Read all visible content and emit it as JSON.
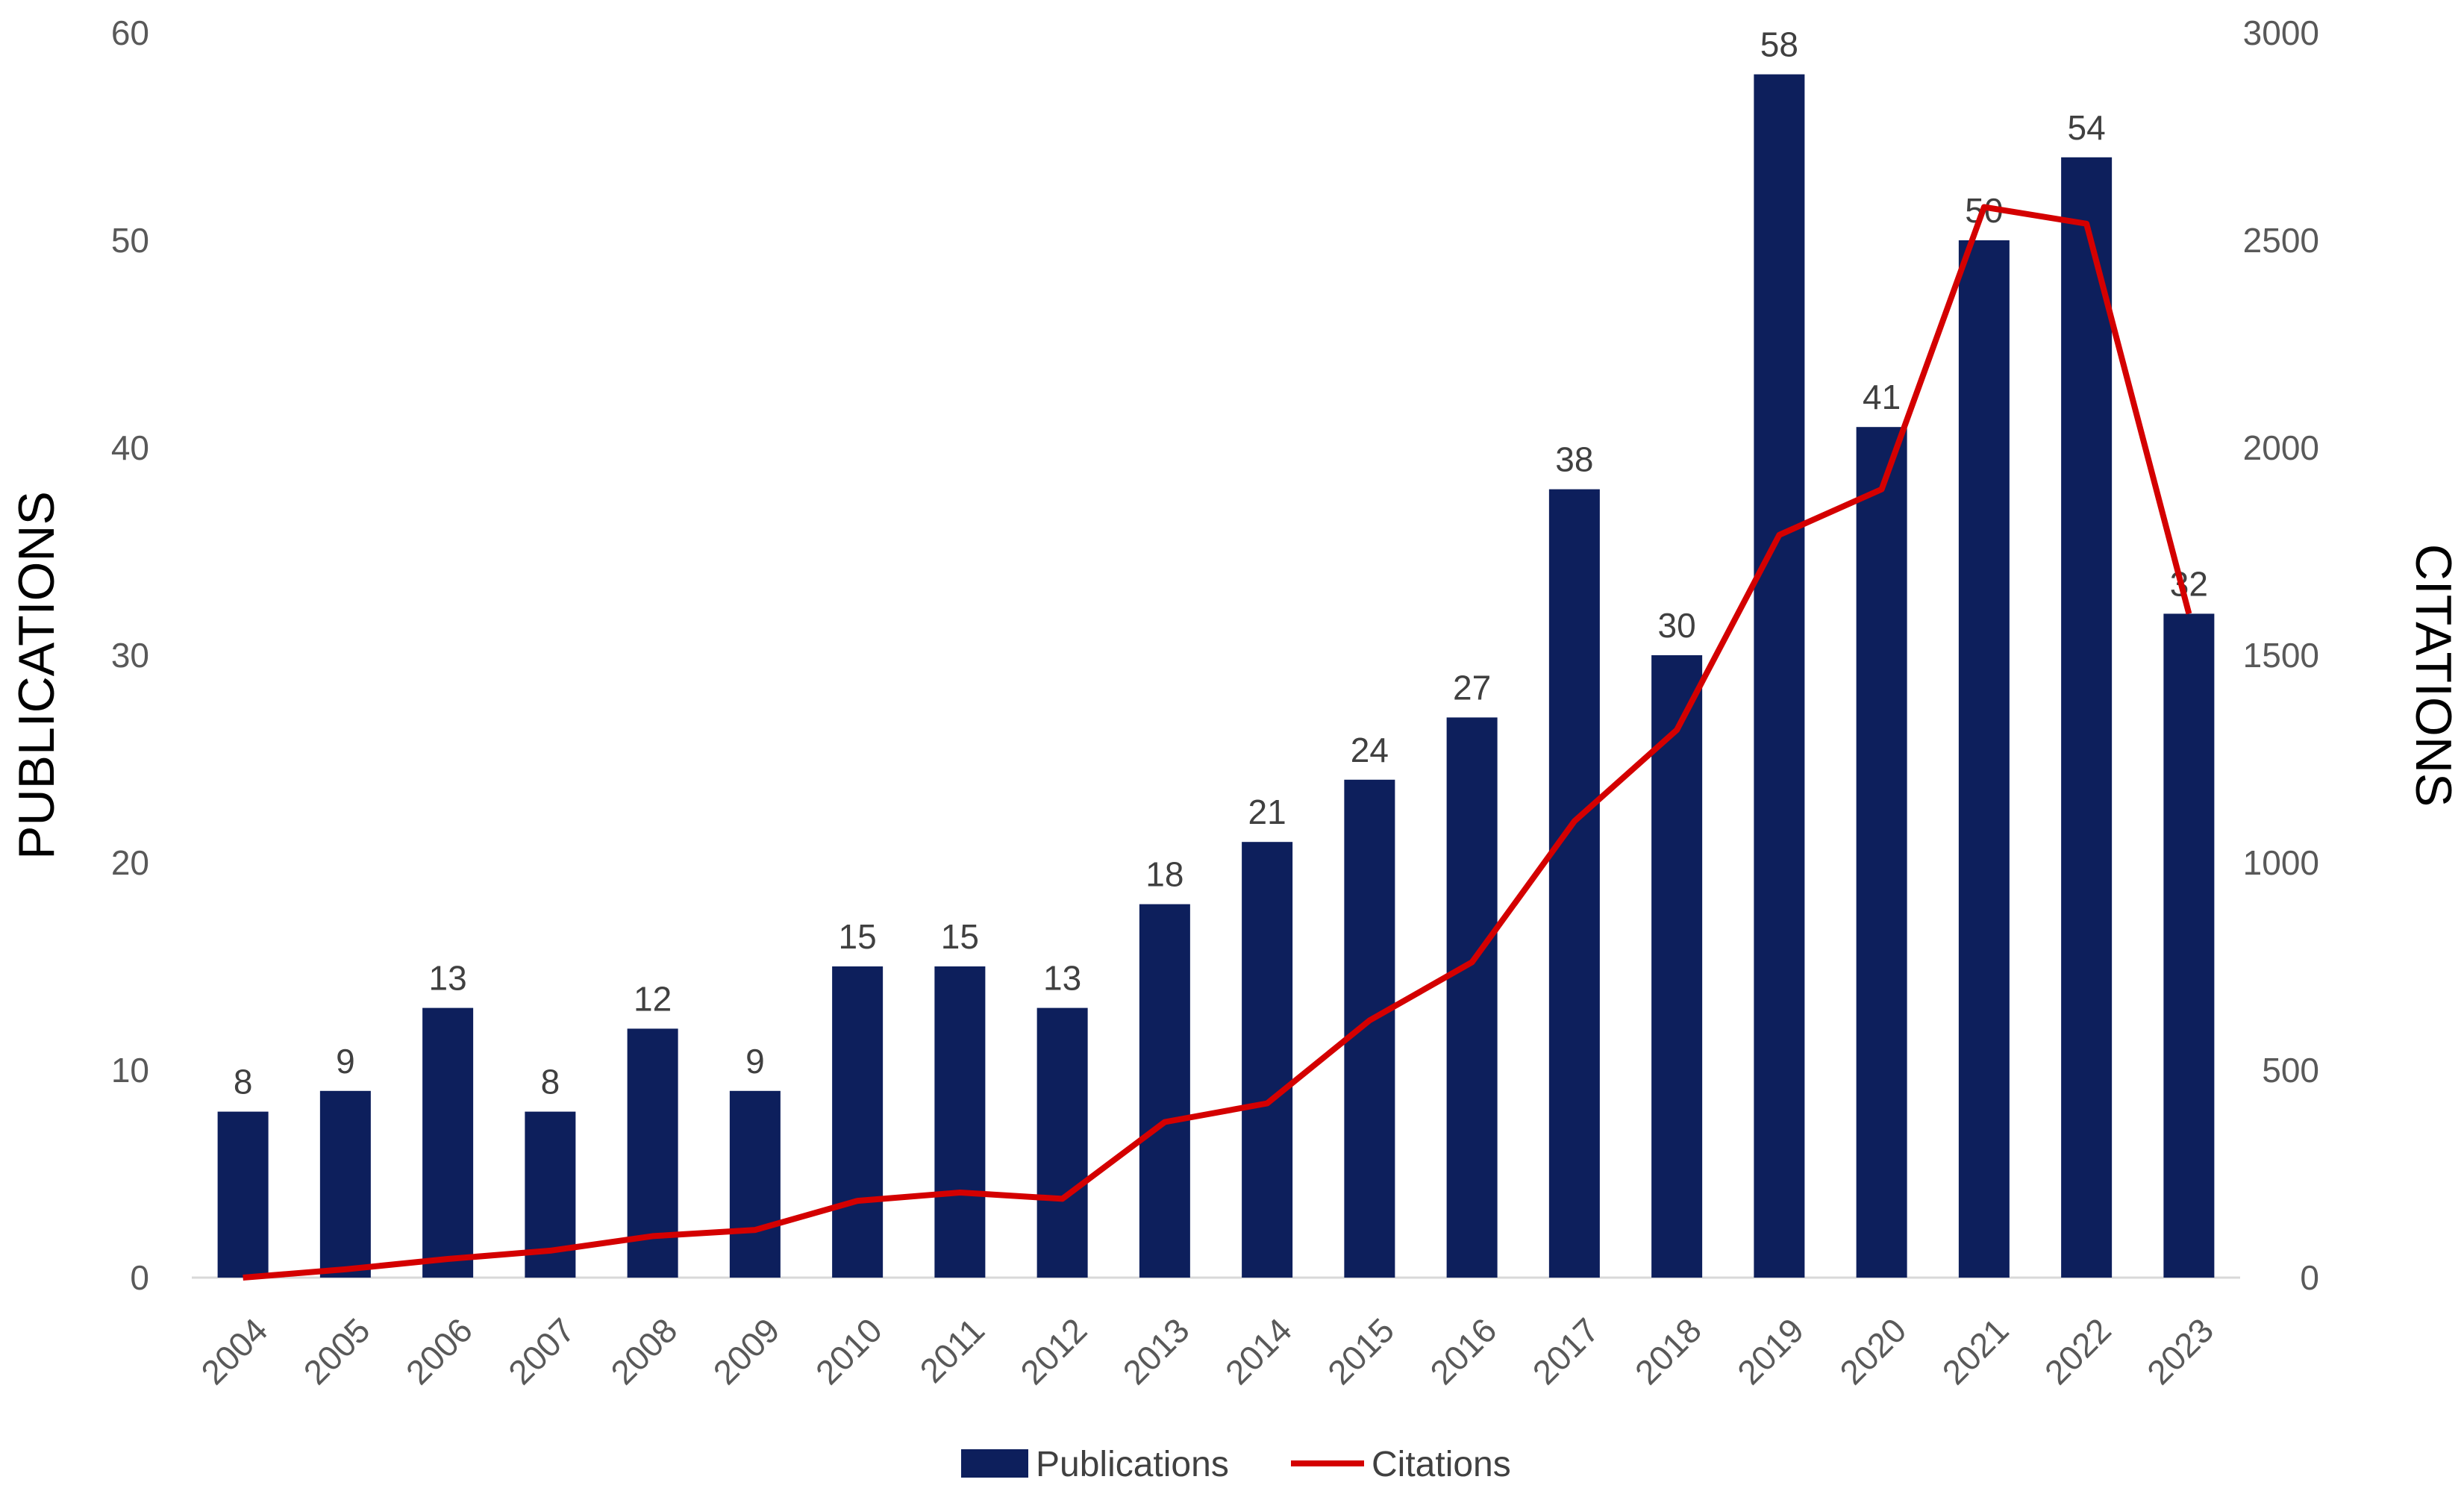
{
  "chart_data": {
    "type": "bar",
    "categories": [
      "2004",
      "2005",
      "2006",
      "2007",
      "2008",
      "2009",
      "2010",
      "2011",
      "2012",
      "2013",
      "2014",
      "2015",
      "2016",
      "2017",
      "2018",
      "2019",
      "2020",
      "2021",
      "2022",
      "2023"
    ],
    "series": [
      {
        "name": "Publications",
        "type": "bar",
        "axis": "left",
        "color": "#0d1f5c",
        "values": [
          8,
          9,
          13,
          8,
          12,
          9,
          15,
          15,
          13,
          18,
          21,
          24,
          27,
          38,
          30,
          58,
          41,
          50,
          54,
          32
        ],
        "data_labels": [
          "8",
          "9",
          "13",
          "8",
          "12",
          "9",
          "15",
          "15",
          "13",
          "18",
          "21",
          "24",
          "27",
          "38",
          "30",
          "58",
          "41",
          "50",
          "54",
          "32"
        ]
      },
      {
        "name": "Citations",
        "type": "line",
        "axis": "right",
        "color": "#d40000",
        "values": [
          0,
          20,
          45,
          65,
          100,
          115,
          185,
          205,
          190,
          375,
          420,
          620,
          760,
          1100,
          1320,
          1790,
          1900,
          2580,
          2540,
          1600
        ]
      }
    ],
    "title": "",
    "xlabel": "",
    "ylabel": "PUBLICATIONS",
    "y2label": "CITATIONS",
    "ylim": [
      0,
      60
    ],
    "y2lim": [
      0,
      3000
    ],
    "yticks": [
      "0",
      "10",
      "20",
      "30",
      "40",
      "50",
      "60"
    ],
    "y2ticks": [
      "0",
      "500",
      "1000",
      "1500",
      "2000",
      "2500",
      "3000"
    ],
    "grid": false,
    "legend_position": "bottom-center",
    "legend": [
      "Publications",
      "Citations"
    ]
  }
}
